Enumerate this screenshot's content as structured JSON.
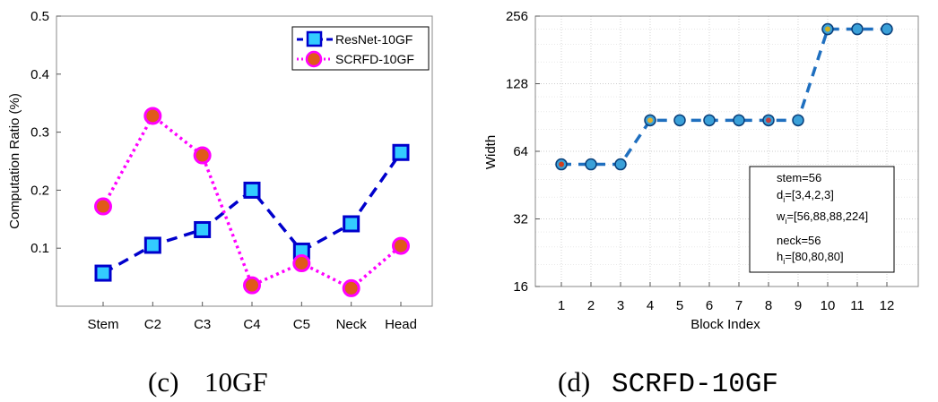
{
  "chart_data": [
    {
      "type": "line",
      "categories": [
        "Stem",
        "C2",
        "C3",
        "C4",
        "C5",
        "Neck",
        "Head"
      ],
      "series": [
        {
          "name": "ResNet-10GF",
          "values": [
            0.057,
            0.105,
            0.132,
            0.2,
            0.095,
            0.142,
            0.265
          ],
          "color": "#0000cc",
          "fill": "#33ccff",
          "style": "dashed",
          "marker": "square"
        },
        {
          "name": "SCRFD-10GF",
          "values": [
            0.172,
            0.328,
            0.26,
            0.036,
            0.074,
            0.031,
            0.104
          ],
          "color": "#ff00ff",
          "fill": "#e05a1a",
          "style": "dotted",
          "marker": "circle"
        }
      ],
      "title": "",
      "xlabel": "",
      "ylabel": "Computation Ratio (%)",
      "ylim": [
        0,
        0.5
      ],
      "yticks": [
        "0.1",
        "0.2",
        "0.3",
        "0.4",
        "0.5"
      ],
      "grid": false,
      "legend": "top-right",
      "caption_label": "(c)",
      "caption_text": "10GF"
    },
    {
      "type": "line",
      "categories": [
        "1",
        "2",
        "3",
        "4",
        "5",
        "6",
        "7",
        "8",
        "9",
        "10",
        "11",
        "12"
      ],
      "x": [
        1,
        2,
        3,
        4,
        5,
        6,
        7,
        8,
        9,
        10,
        11,
        12
      ],
      "series": [
        {
          "name": "Width",
          "values": [
            56,
            56,
            56,
            88,
            88,
            88,
            88,
            88,
            88,
            224,
            224,
            224
          ],
          "color": "#1f6fbf",
          "marker_fill": "#3aa0d8",
          "center_colors": [
            "#d04020",
            "#3aa0d8",
            "#3aa0d8",
            "#e0b030",
            "#3aa0d8",
            "#3aa0d8",
            "#3aa0d8",
            "#c04040",
            "#3aa0d8",
            "#d0b020",
            "#3aa0d8",
            "#3aa0d8"
          ]
        }
      ],
      "title": "",
      "xlabel": "Block Index",
      "ylabel": "Width",
      "yscale": "log2",
      "ylim": [
        16,
        256
      ],
      "yticks": [
        "16",
        "32",
        "64",
        "128",
        "256"
      ],
      "grid": true,
      "annotation": [
        {
          "text": "stem=56"
        },
        {
          "text": "d",
          "sub": "i",
          "rest": "=[3,4,2,3]"
        },
        {
          "text": "w",
          "sub": "i",
          "rest": "=[56,88,88,224]"
        },
        {
          "text": "neck=56"
        },
        {
          "text": "h",
          "sub": "i",
          "rest": "=[80,80,80]"
        }
      ],
      "caption_label": "(d)",
      "caption_text": "SCRFD-10GF"
    }
  ]
}
